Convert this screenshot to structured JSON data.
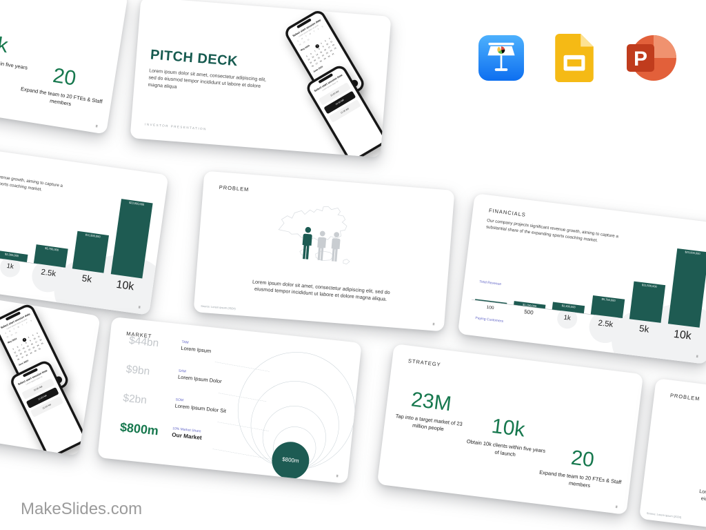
{
  "page": {
    "watermark": "MakeSlides.com"
  },
  "app_icons": [
    "keynote-icon",
    "google-slides-icon",
    "powerpoint-icon"
  ],
  "colors": {
    "accent_green": "#17784e",
    "teal_dark": "#1d5b53",
    "purple_label": "#6468c8",
    "value_gray": "#c3c7cb",
    "keynote_blue": "#1f8df5",
    "slides_yellow": "#f5ba15",
    "powerpoint_orange": "#d35230"
  },
  "slides": {
    "pitch_deck": {
      "title": "PITCH DECK",
      "body": "Lorem ipsum dolor sit amet, consectetur adipiscing elit, sed do eiusmod tempor incididunt ut labore et dolore magna aliqua",
      "footer": "INVESTOR PRESENTATION",
      "phone_date": {
        "heading": "Select start session date",
        "subheading": "Lorem ipsum dolor sit amet",
        "weekdays": [
          "S",
          "M",
          "T",
          "W",
          "T",
          "F",
          "S"
        ],
        "lead_days": [
          "28",
          "29",
          "30"
        ],
        "month_current": "May 2024",
        "days": [
          "",
          "",
          "",
          "1",
          "2",
          "3",
          "4",
          "5",
          "6",
          "7",
          "8",
          "9",
          "10",
          "11",
          "12",
          "13",
          "14",
          "15",
          "16",
          "17",
          "18",
          "19",
          "20",
          "21",
          "22",
          "23",
          "24",
          "25",
          "26",
          "27",
          "28",
          "29",
          "30",
          "31"
        ],
        "selected_day": "1",
        "month_next": "June 2024",
        "next_button": "Next"
      },
      "phone_time": {
        "heading": "Select start session time",
        "subheading": "Lorem ipsum dolor sit",
        "options": [
          "10:00 AM",
          "10:30 AM",
          "11:00 AM"
        ],
        "selected": "10:30 AM"
      }
    },
    "problem": {
      "title": "PROBLEM",
      "caption": "Lorem ipsum dolor sit amet, consectetur adipiscing elit, sed do eiusmod tempor incididunt ut labore et dolore magna aliqua.",
      "source": "Source: Lorem ipsum (2024)"
    },
    "financials": {
      "title": "FINANCIALS",
      "body": "Our company projects significant revenue growth, aiming to capture a substantial share of the expanding sports coaching market.",
      "y_axis_label": "Total Revenue",
      "x_axis_label": "Paying Customers"
    },
    "market": {
      "title": "MARKET",
      "rows": [
        {
          "value": "$44bn",
          "tag": "TAM",
          "label": "Lorem Ipsum"
        },
        {
          "value": "$9bn",
          "tag": "SAM",
          "label": "Lorem Ipsum Dolor"
        },
        {
          "value": "$2bn",
          "tag": "SOM",
          "label": "Lorem Ipsum Dolor Sit"
        },
        {
          "value": "$800m",
          "tag": "10% Market Share",
          "label": "Our Market"
        }
      ],
      "bubble_label": "$800m"
    },
    "strategy": {
      "title": "STRATEGY",
      "stats": [
        {
          "value": "23M",
          "caption": "Tap into a target market of 23 million people"
        },
        {
          "value": "10k",
          "caption": "Obtain 10k clients within five years of launch"
        },
        {
          "value": "20",
          "caption": "Expand the team to 20 FTEs & Staff members"
        }
      ]
    }
  },
  "chart_data": [
    {
      "type": "bar",
      "title": "FINANCIALS",
      "xlabel": "Paying Customers",
      "ylabel": "Total Revenue",
      "categories": [
        "100",
        "500",
        "1k",
        "2.5k",
        "5k",
        "10k"
      ],
      "values": [
        230000,
        1150000,
        2300000,
        5750000,
        11500000,
        23000000
      ],
      "bar_labels": [
        "",
        "$1,150,000",
        "$2,300,000",
        "$5,750,000",
        "$11,500,000",
        "$23,000,000"
      ],
      "ylim": [
        0,
        23000000
      ],
      "grid": false,
      "legend": false
    },
    {
      "type": "pie",
      "title": "MARKET",
      "labels": [
        "TAM",
        "SAM",
        "SOM",
        "Our Market (10% Market Share)"
      ],
      "values": [
        44000000000,
        9000000000,
        2000000000,
        800000000
      ],
      "values_text": [
        "$44bn",
        "$9bn",
        "$2bn",
        "$800m"
      ],
      "note": "concentric TAM/SAM/SOM circles, innermost filled with $800m"
    }
  ]
}
